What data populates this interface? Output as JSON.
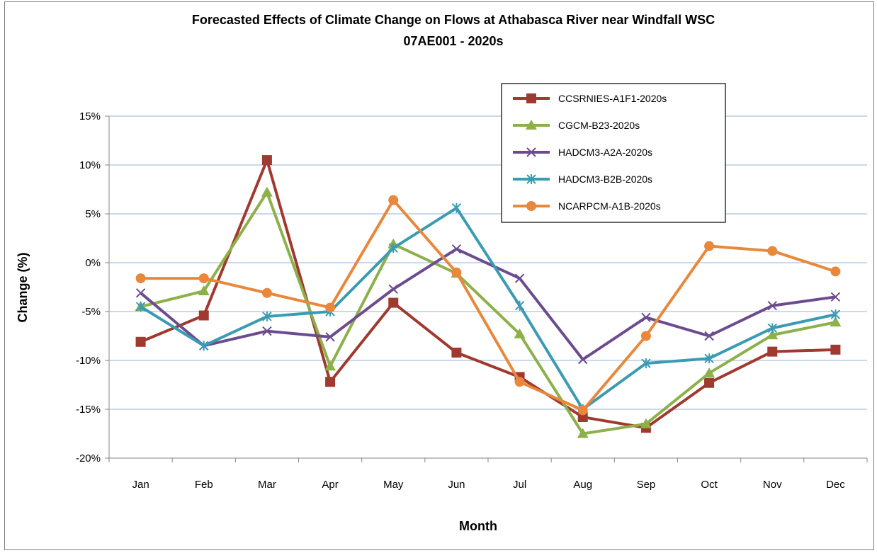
{
  "chart_data": {
    "type": "line",
    "title": "Forecasted Effects of Climate Change on Flows  at Athabasca River near Windfall WSC",
    "subtitle": "07AE001  - 2020s",
    "xlabel": "Month",
    "ylabel": "Change (%)",
    "ylim": [
      -20,
      15
    ],
    "y_ticks": [
      -20,
      -15,
      -10,
      -5,
      0,
      5,
      10,
      15
    ],
    "y_tick_labels": [
      "-20%",
      "-15%",
      "-10%",
      "-5%",
      "0%",
      "5%",
      "10%",
      "15%"
    ],
    "grid": true,
    "legend_position": "top-right",
    "categories": [
      "Jan",
      "Feb",
      "Mar",
      "Apr",
      "May",
      "Jun",
      "Jul",
      "Aug",
      "Sep",
      "Oct",
      "Nov",
      "Dec"
    ],
    "series": [
      {
        "name": "CCSRNIES-A1F1-2020s",
        "color": "#a0392f",
        "marker": "square",
        "values": [
          -8.1,
          -5.4,
          10.5,
          -12.2,
          -4.1,
          -9.2,
          -11.7,
          -15.8,
          -16.9,
          -12.3,
          -9.1,
          -8.9
        ]
      },
      {
        "name": "CGCM-B23-2020s",
        "color": "#8db04a",
        "marker": "triangle",
        "values": [
          -4.5,
          -2.9,
          7.2,
          -10.6,
          1.9,
          -1.1,
          -7.3,
          -17.5,
          -16.5,
          -11.3,
          -7.4,
          -6.1
        ]
      },
      {
        "name": "HADCM3-A2A-2020s",
        "color": "#6c4b8f",
        "marker": "x",
        "values": [
          -3.1,
          -8.5,
          -7.0,
          -7.6,
          -2.7,
          1.4,
          -1.6,
          -9.9,
          -5.6,
          -7.5,
          -4.4,
          -3.5
        ]
      },
      {
        "name": "HADCM3-B2B-2020s",
        "color": "#3a9bb2",
        "marker": "star",
        "values": [
          -4.5,
          -8.5,
          -5.5,
          -5.0,
          1.5,
          5.6,
          -4.4,
          -15.0,
          -10.3,
          -9.8,
          -6.7,
          -5.3
        ]
      },
      {
        "name": "NCARPCM-A1B-2020s",
        "color": "#e8883c",
        "marker": "circle",
        "values": [
          -1.6,
          -1.6,
          -3.1,
          -4.6,
          6.4,
          -1.0,
          -12.2,
          -15.1,
          -7.5,
          1.7,
          1.2,
          -0.9
        ]
      }
    ]
  }
}
